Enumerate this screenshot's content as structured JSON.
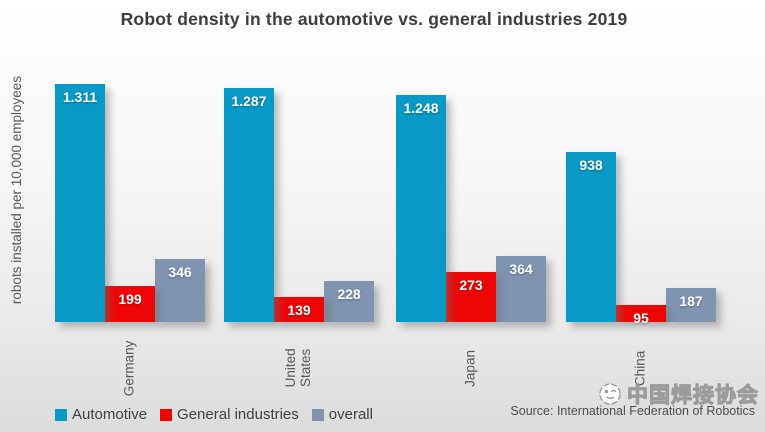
{
  "title": "Robot density in the automotive vs. general industries 2019",
  "chart_data": {
    "type": "bar",
    "title": "Robot density in the automotive vs. general industries 2019",
    "xlabel": "",
    "ylabel": "robots installed per 10,000 employees",
    "categories": [
      "Germany",
      "United States",
      "Japan",
      "China"
    ],
    "series": [
      {
        "name": "Automotive",
        "color": "#0999c7",
        "values": [
          1311,
          1287,
          1248,
          938
        ],
        "value_labels": [
          "1.311",
          "1.287",
          "1.248",
          "938"
        ]
      },
      {
        "name": "General industries",
        "color": "#ee0606",
        "values": [
          199,
          139,
          273,
          95
        ],
        "value_labels": [
          "199",
          "139",
          "273",
          "95"
        ]
      },
      {
        "name": "overall",
        "color": "#7f94b0",
        "values": [
          346,
          228,
          364,
          187
        ],
        "value_labels": [
          "346",
          "228",
          "364",
          "187"
        ]
      }
    ],
    "ylim": [
      0,
      1400
    ],
    "grid": false,
    "legend_position": "bottom"
  },
  "footer": {
    "source": "Source: International Federation of Robotics",
    "watermark": "中国焊接协会"
  },
  "colors": {
    "automotive": "#0999c7",
    "general_industries": "#ee0606",
    "overall": "#7f94b0",
    "title_text": "#3d3d3d",
    "axis_text": "#595959"
  }
}
